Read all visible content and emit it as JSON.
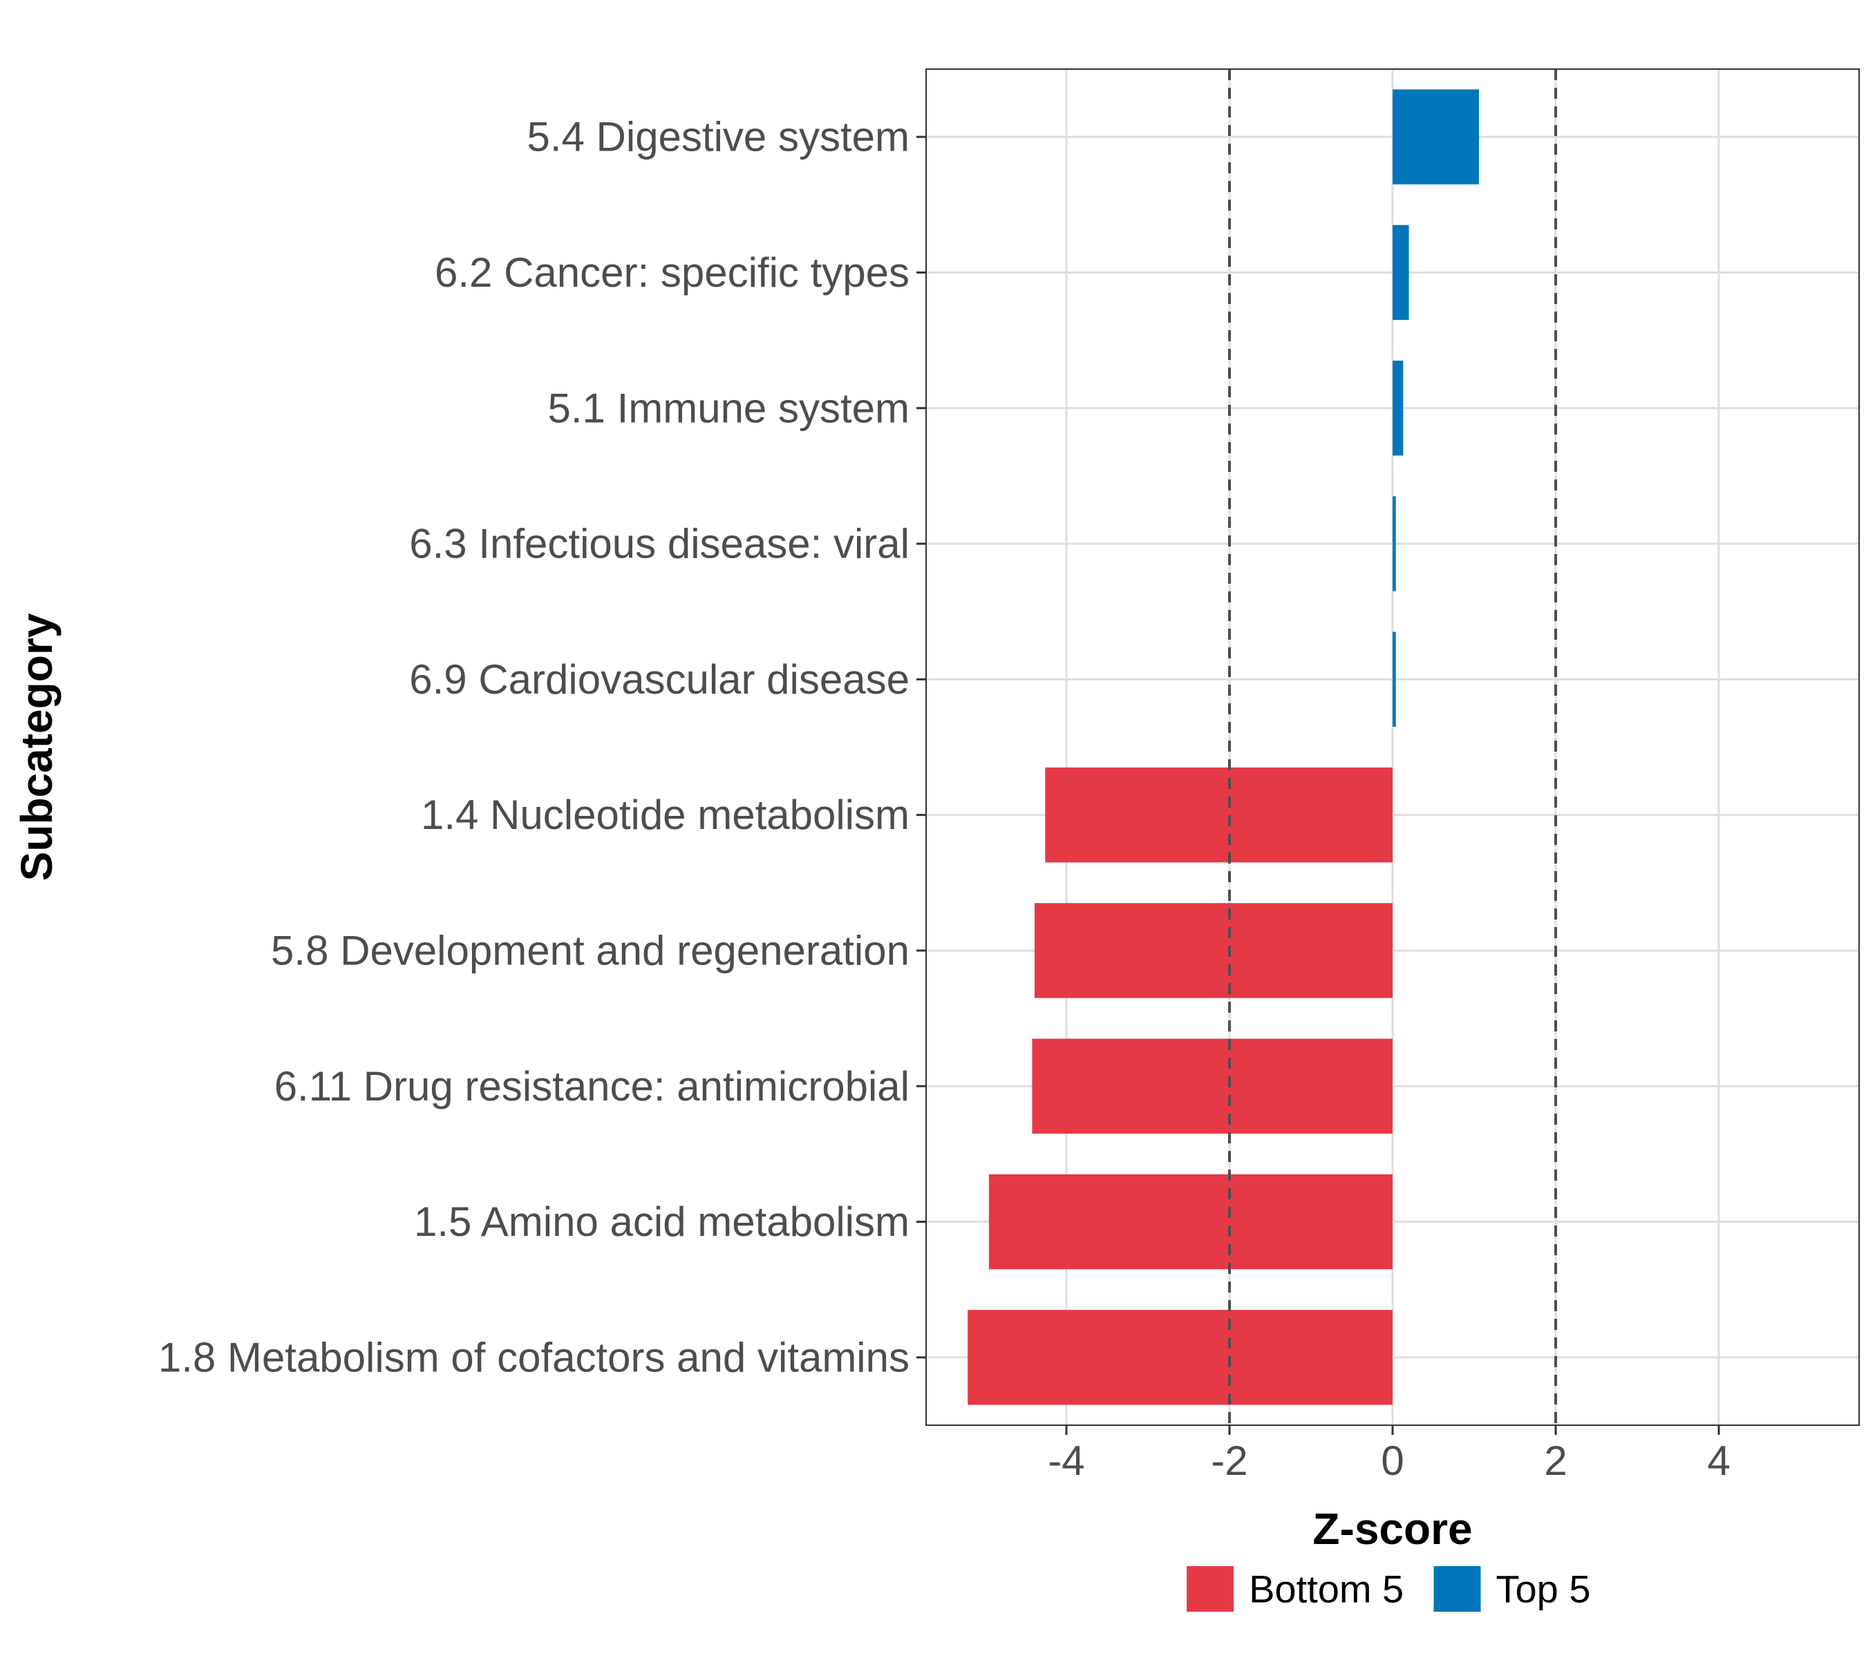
{
  "chart_data": {
    "type": "bar",
    "orientation": "horizontal",
    "categories": [
      "5.4 Digestive system",
      "6.2 Cancer: specific types",
      "5.1 Immune system",
      "6.3 Infectious disease: viral",
      "6.9 Cardiovascular disease",
      "1.4 Nucleotide metabolism",
      "5.8 Development and regeneration",
      "6.11 Drug resistance: antimicrobial",
      "1.5 Amino acid metabolism",
      "1.8 Metabolism of cofactors and vitamins"
    ],
    "values": [
      1.06,
      0.2,
      0.13,
      0.04,
      0.04,
      -4.26,
      -4.39,
      -4.42,
      -4.95,
      -5.21
    ],
    "groups": [
      "Top 5",
      "Top 5",
      "Top 5",
      "Top 5",
      "Top 5",
      "Bottom 5",
      "Bottom 5",
      "Bottom 5",
      "Bottom 5",
      "Bottom 5"
    ],
    "xlabel": "Z-score",
    "ylabel": "Subcategory",
    "xlim": [
      -5.72,
      5.72
    ],
    "xticks": [
      -4,
      -2,
      0,
      2,
      4
    ],
    "xtick_labels": [
      "-4",
      "-2",
      "0",
      "2",
      "4"
    ],
    "reference_lines": [
      -2,
      2
    ],
    "grid": true,
    "legend": {
      "placement": "bottom",
      "entries": [
        {
          "label": "Bottom 5",
          "color": "#E63946"
        },
        {
          "label": "Top 5",
          "color": "#0077BB"
        }
      ]
    },
    "colors": {
      "Bottom 5": "#E63946",
      "Top 5": "#0077BB"
    }
  }
}
